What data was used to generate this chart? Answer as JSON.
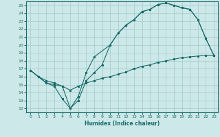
{
  "title": "",
  "xlabel": "Humidex (Indice chaleur)",
  "bg_color": "#cde8e8",
  "grid_color": "#aacece",
  "line_color": "#1a6b6b",
  "xlim": [
    -0.5,
    23.5
  ],
  "ylim": [
    11.5,
    25.5
  ],
  "xticks": [
    0,
    1,
    2,
    3,
    4,
    5,
    6,
    7,
    8,
    9,
    10,
    11,
    12,
    13,
    14,
    15,
    16,
    17,
    18,
    19,
    20,
    21,
    22,
    23
  ],
  "yticks": [
    12,
    13,
    14,
    15,
    16,
    17,
    18,
    19,
    20,
    21,
    22,
    23,
    24,
    25
  ],
  "line1_x": [
    0,
    1,
    2,
    3,
    4,
    5,
    6,
    7,
    8,
    9,
    10,
    11,
    12,
    13,
    14,
    15,
    16,
    17,
    18,
    19,
    20,
    21,
    22,
    23
  ],
  "line1_y": [
    16.8,
    16.0,
    15.2,
    14.8,
    13.2,
    12.0,
    13.0,
    15.5,
    16.5,
    17.5,
    20.0,
    21.5,
    22.5,
    23.2,
    24.2,
    24.5,
    25.1,
    25.3,
    25.0,
    24.7,
    24.5,
    23.2,
    20.8,
    18.7
  ],
  "line2_x": [
    0,
    1,
    2,
    3,
    4,
    5,
    6,
    7,
    8,
    10,
    11,
    12,
    13,
    14,
    15,
    16,
    17,
    18,
    19,
    20,
    21,
    22,
    23
  ],
  "line2_y": [
    16.8,
    16.0,
    15.2,
    15.0,
    14.8,
    12.0,
    13.5,
    16.5,
    18.5,
    20.0,
    21.5,
    22.5,
    23.2,
    24.2,
    24.5,
    25.1,
    25.3,
    25.0,
    24.7,
    24.5,
    23.2,
    20.8,
    18.7
  ],
  "line3_x": [
    0,
    1,
    2,
    3,
    4,
    5,
    6,
    7,
    8,
    9,
    10,
    11,
    12,
    13,
    14,
    15,
    16,
    17,
    18,
    19,
    20,
    21,
    22,
    23
  ],
  "line3_y": [
    16.8,
    16.0,
    15.5,
    15.2,
    14.8,
    14.3,
    14.8,
    15.2,
    15.5,
    15.8,
    16.0,
    16.3,
    16.6,
    17.0,
    17.3,
    17.5,
    17.8,
    18.0,
    18.2,
    18.4,
    18.5,
    18.6,
    18.7,
    18.7
  ]
}
